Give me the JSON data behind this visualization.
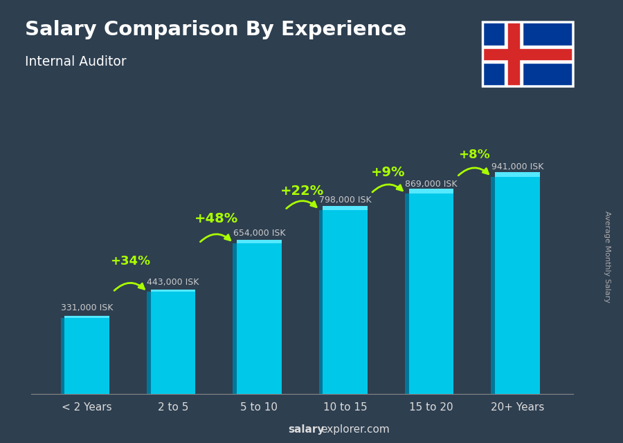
{
  "title": "Salary Comparison By Experience",
  "subtitle": "Internal Auditor",
  "categories": [
    "< 2 Years",
    "2 to 5",
    "5 to 10",
    "10 to 15",
    "15 to 20",
    "20+ Years"
  ],
  "values": [
    331000,
    443000,
    654000,
    798000,
    869000,
    941000
  ],
  "labels": [
    "331,000 ISK",
    "443,000 ISK",
    "654,000 ISK",
    "798,000 ISK",
    "869,000 ISK",
    "941,000 ISK"
  ],
  "pct_labels": [
    "+34%",
    "+48%",
    "+22%",
    "+9%",
    "+8%"
  ],
  "bar_color_main": "#00c8e8",
  "bar_color_side": "#007799",
  "bar_color_top": "#55e8ff",
  "bg_color": "#2e3f50",
  "title_color": "#ffffff",
  "subtitle_color": "#ffffff",
  "label_color": "#cccccc",
  "pct_color": "#aaff00",
  "watermark_bold": "salary",
  "watermark_normal": "explorer.com",
  "ylabel_text": "Average Monthly Salary",
  "ylim": [
    0,
    1150000
  ],
  "flag_colors": {
    "blue": "#003897",
    "white": "#ffffff",
    "red": "#d72828"
  }
}
